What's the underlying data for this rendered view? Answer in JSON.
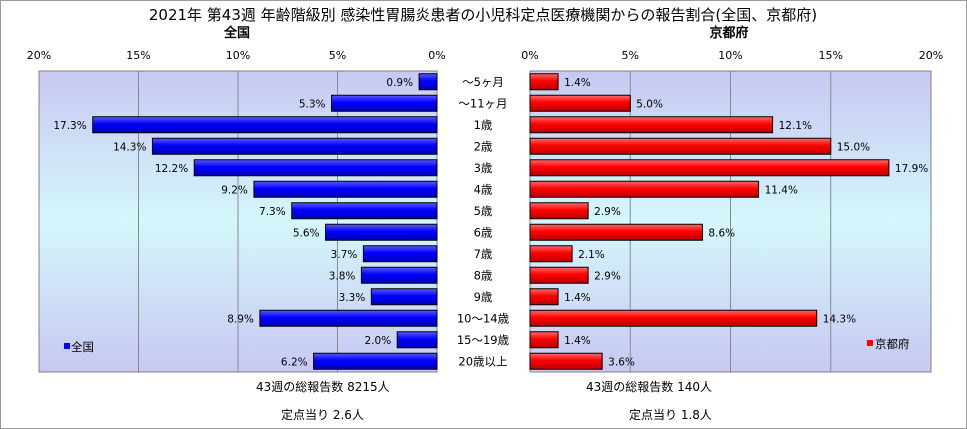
{
  "chart_data": {
    "type": "bar",
    "title": "2021年 第43週 年齢階級別 感染性胃腸炎患者の小児科定点医療機関からの報告割合(全国、京都府)",
    "categories": [
      "～5ヶ月",
      "～11ヶ月",
      "1歳",
      "2歳",
      "3歳",
      "4歳",
      "5歳",
      "6歳",
      "7歳",
      "8歳",
      "9歳",
      "10～14歳",
      "15～19歳",
      "20歳以上"
    ],
    "xlim": [
      0,
      20
    ],
    "ticks": [
      0,
      5,
      10,
      15,
      20
    ],
    "tick_labels_left": [
      "0%",
      "5%",
      "10%",
      "15%",
      "20%"
    ],
    "tick_labels_right": [
      "0%",
      "5%",
      "10%",
      "15%",
      "20%"
    ],
    "grid": true,
    "legend_placement": "bottom-inside",
    "series": [
      {
        "name": "全国",
        "panel_title": "全国",
        "color": "#0000ff",
        "values": [
          0.9,
          5.3,
          17.3,
          14.3,
          12.2,
          9.2,
          7.3,
          5.6,
          3.7,
          3.8,
          3.3,
          8.9,
          2.0,
          6.2
        ],
        "labels": [
          "0.9%",
          "5.3%",
          "17.3%",
          "14.3%",
          "12.2%",
          "9.2%",
          "7.3%",
          "5.6%",
          "3.7%",
          "3.8%",
          "3.3%",
          "8.9%",
          "2.0%",
          "6.2%"
        ],
        "legend": "全国",
        "footer_reports": "43週の総報告数 8215人",
        "footer_per_site": "定点当り  2.6人"
      },
      {
        "name": "京都府",
        "panel_title": "京都府",
        "color": "#ff0000",
        "values": [
          1.4,
          5.0,
          12.1,
          15.0,
          17.9,
          11.4,
          2.9,
          8.6,
          2.1,
          2.9,
          1.4,
          14.3,
          1.4,
          3.6
        ],
        "labels": [
          "1.4%",
          "5.0%",
          "12.1%",
          "15.0%",
          "17.9%",
          "11.4%",
          "2.9%",
          "8.6%",
          "2.1%",
          "2.9%",
          "1.4%",
          "14.3%",
          "1.4%",
          "3.6%"
        ],
        "legend": "京都府",
        "footer_reports": "43週の総報告数   140人",
        "footer_per_site": "定点当り  1.8人"
      }
    ]
  }
}
